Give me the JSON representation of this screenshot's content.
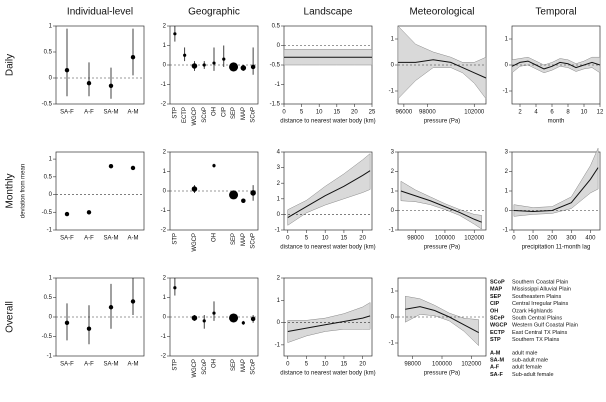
{
  "columns": [
    "Individual-level",
    "Geographic",
    "Landscape",
    "Meteorological",
    "Temporal"
  ],
  "rows": [
    "Daily",
    "Monthly",
    "Overall"
  ],
  "ylabel": "deviation from mean",
  "chart_data": [
    {
      "type": "errorbar",
      "categories": [
        "SA-F",
        "A-F",
        "SA-M",
        "A-M"
      ],
      "values": [
        0.15,
        -0.1,
        -0.15,
        0.4
      ],
      "lower": [
        -0.35,
        -0.35,
        -0.4,
        0.05
      ],
      "upper": [
        0.95,
        0.3,
        0.2,
        0.95
      ],
      "ylim": [
        -0.5,
        1
      ],
      "yticks": [
        -0.5,
        0,
        0.5,
        1
      ]
    },
    {
      "type": "bubble",
      "categories": [
        "STP",
        "ECTP",
        "WGCP",
        "SCoP",
        "OH",
        "CIP",
        "SEP",
        "MAP",
        "SCoP"
      ],
      "values": [
        1.6,
        0.5,
        -0.05,
        0,
        0.1,
        0.3,
        -0.1,
        -0.15,
        -0.1
      ],
      "lower": [
        1.2,
        0.2,
        -0.3,
        -0.2,
        -0.3,
        -0.1,
        -0.3,
        -0.3,
        -0.5
      ],
      "upper": [
        2,
        0.9,
        0.2,
        0.2,
        0.9,
        1,
        0.1,
        0,
        0.9
      ],
      "sizes": [
        1,
        1,
        3,
        1,
        1,
        1,
        8,
        3,
        2
      ],
      "ylim": [
        -2,
        2
      ],
      "yticks": [
        -2,
        -1,
        0,
        1,
        2
      ]
    },
    {
      "type": "band",
      "xlabel": "distance to nearest water body (km)",
      "x": [
        0,
        5,
        10,
        15,
        20,
        25
      ],
      "values": [
        -0.3,
        -0.3,
        -0.3,
        -0.3,
        -0.3,
        -0.3
      ],
      "lower": [
        -0.5,
        -0.5,
        -0.5,
        -0.5,
        -0.5,
        -0.5
      ],
      "upper": [
        -0.1,
        -0.1,
        -0.1,
        -0.1,
        -0.1,
        -0.1
      ],
      "xlim": [
        0,
        25
      ],
      "xticks": [
        0,
        5,
        10,
        15,
        20,
        25
      ],
      "ylim": [
        -1.5,
        0.5
      ],
      "yticks": [
        -1.5,
        -1,
        -0.5,
        0,
        0.5
      ]
    },
    {
      "type": "band",
      "xlabel": "pressure (Pa)",
      "x": [
        95500,
        97000,
        98500,
        100000,
        101000,
        102000,
        103000
      ],
      "values": [
        0.1,
        0.1,
        0.2,
        0.1,
        -0.1,
        -0.3,
        -0.5
      ],
      "lower": [
        -1.3,
        -0.6,
        -0.1,
        -0.1,
        -0.3,
        -0.7,
        -1.3
      ],
      "upper": [
        1.5,
        0.8,
        0.5,
        0.3,
        0.1,
        0.1,
        0.3
      ],
      "xlim": [
        95500,
        103000
      ],
      "xticks": [
        96000,
        98000,
        102000
      ],
      "ylim": [
        -1.5,
        1.5
      ],
      "yticks": [
        -1,
        0,
        1
      ]
    },
    {
      "type": "band",
      "xlabel": "month",
      "x": [
        1,
        2,
        3,
        4,
        5,
        6,
        7,
        8,
        9,
        10,
        11,
        12
      ],
      "values": [
        -0.05,
        0.1,
        0.15,
        0,
        -0.15,
        -0.05,
        0.1,
        0.05,
        -0.1,
        0,
        0.1,
        0
      ],
      "lower": [
        -0.3,
        -0.05,
        0,
        -0.15,
        -0.3,
        -0.2,
        -0.05,
        -0.1,
        -0.25,
        -0.15,
        -0.1,
        -0.3
      ],
      "upper": [
        0.2,
        0.25,
        0.3,
        0.15,
        0,
        0.1,
        0.25,
        0.2,
        0.05,
        0.15,
        0.3,
        0.3
      ],
      "xlim": [
        1,
        12
      ],
      "xticks": [
        2,
        4,
        6,
        8,
        10,
        12
      ],
      "ylim": [
        -1.5,
        1.5
      ],
      "yticks": [
        -1,
        0,
        1
      ]
    },
    {
      "type": "errorbar",
      "categories": [
        "SA-F",
        "A-F",
        "SA-M",
        "A-M"
      ],
      "values": [
        -0.55,
        -0.5,
        0.8,
        0.75
      ],
      "lower": [
        -0.6,
        -0.55,
        0.75,
        0.7
      ],
      "upper": [
        -0.5,
        -0.45,
        0.85,
        0.8
      ],
      "ylim": [
        -1,
        1.2
      ],
      "yticks": [
        -1,
        -0.5,
        0,
        0.5,
        1
      ]
    },
    {
      "type": "bubble",
      "categories": [
        "STP",
        null,
        "WGCP",
        null,
        "OH",
        null,
        "SEP",
        "MAP",
        "SCoP"
      ],
      "values": [
        null,
        null,
        0.1,
        null,
        1.3,
        null,
        -0.2,
        -0.5,
        -0.1
      ],
      "lower": [
        null,
        null,
        -0.1,
        null,
        1.2,
        null,
        -0.3,
        -0.6,
        -0.5
      ],
      "upper": [
        null,
        null,
        0.3,
        null,
        1.4,
        null,
        -0.1,
        -0.4,
        0.3
      ],
      "sizes": [
        null,
        null,
        3,
        null,
        1,
        null,
        8,
        2,
        3
      ],
      "ylim": [
        -2,
        2
      ],
      "yticks": [
        -2,
        -1,
        0,
        1,
        2
      ]
    },
    {
      "type": "band",
      "xlabel": "distance to nearest water body (km)",
      "x": [
        0,
        5,
        10,
        15,
        20,
        22
      ],
      "values": [
        -0.2,
        0.5,
        1.2,
        1.8,
        2.5,
        2.8
      ],
      "lower": [
        -0.7,
        0.1,
        0.6,
        1.0,
        1.4,
        1.6
      ],
      "upper": [
        0.3,
        0.9,
        1.8,
        2.6,
        3.5,
        3.9
      ],
      "xlim": [
        -1,
        22.5
      ],
      "xticks": [
        0,
        5,
        10,
        15,
        20
      ],
      "ylim": [
        -1,
        4
      ],
      "yticks": [
        -1,
        0,
        1,
        2,
        3,
        4
      ]
    },
    {
      "type": "band",
      "xlabel": "pressure (Pa)",
      "x": [
        97000,
        98000,
        99000,
        100000,
        101000,
        102000,
        102500
      ],
      "values": [
        1.0,
        0.75,
        0.5,
        0.2,
        -0.1,
        -0.45,
        -0.6
      ],
      "lower": [
        0.5,
        0.45,
        0.3,
        0.05,
        -0.25,
        -0.7,
        -0.95
      ],
      "upper": [
        1.5,
        1.05,
        0.7,
        0.35,
        0.05,
        -0.2,
        -0.25
      ],
      "xlim": [
        96800,
        102800
      ],
      "xticks": [
        98000,
        100000,
        102000
      ],
      "ylim": [
        -1,
        3
      ],
      "yticks": [
        -1,
        0,
        1,
        2,
        3
      ]
    },
    {
      "type": "band",
      "xlabel": "precipitation 11-month lag",
      "x": [
        0,
        100,
        200,
        300,
        400,
        440
      ],
      "values": [
        0,
        -0.05,
        0,
        0.4,
        1.6,
        2.2
      ],
      "lower": [
        -0.3,
        -0.2,
        -0.15,
        0.1,
        0.9,
        1.1
      ],
      "upper": [
        0.3,
        0.15,
        0.2,
        0.7,
        2.3,
        3.2
      ],
      "xlim": [
        -10,
        450
      ],
      "xticks": [
        0,
        100,
        200,
        300,
        400
      ],
      "ylim": [
        -1,
        3
      ],
      "yticks": [
        -1,
        0,
        1,
        2,
        3
      ]
    },
    {
      "type": "errorbar",
      "categories": [
        "SA-F",
        "A-F",
        "SA-M",
        "A-M"
      ],
      "values": [
        -0.15,
        -0.3,
        0.25,
        0.4
      ],
      "lower": [
        -0.6,
        -0.7,
        -0.3,
        0.05
      ],
      "upper": [
        0.35,
        0.3,
        0.85,
        1.0
      ],
      "ylim": [
        -1,
        1
      ],
      "yticks": [
        -1,
        -0.5,
        0,
        0.5,
        1
      ]
    },
    {
      "type": "bubble",
      "categories": [
        "STP",
        null,
        "WGCP",
        "SCoP",
        "OH",
        null,
        "SEP",
        "MAP",
        "SCoP"
      ],
      "values": [
        1.5,
        null,
        -0.05,
        -0.2,
        0.2,
        null,
        -0.05,
        -0.3,
        -0.1
      ],
      "lower": [
        1.1,
        null,
        -0.2,
        -0.6,
        -0.2,
        null,
        -0.2,
        -0.4,
        -0.3
      ],
      "upper": [
        2,
        null,
        0.1,
        0.1,
        0.8,
        null,
        0.1,
        -0.2,
        0.1
      ],
      "sizes": [
        1,
        null,
        3,
        1,
        1,
        null,
        8,
        1,
        2
      ],
      "ylim": [
        -2,
        2
      ],
      "yticks": [
        -2,
        -1,
        0,
        1,
        2
      ]
    },
    {
      "type": "band",
      "xlabel": "distance to nearest water body (km)",
      "x": [
        0,
        5,
        10,
        15,
        20,
        22
      ],
      "values": [
        -0.4,
        -0.25,
        -0.1,
        0.05,
        0.2,
        0.3
      ],
      "lower": [
        -0.9,
        -0.6,
        -0.4,
        -0.3,
        -0.3,
        -0.3
      ],
      "upper": [
        0.1,
        0.1,
        0.2,
        0.4,
        0.7,
        0.9
      ],
      "xlim": [
        -1,
        22.5
      ],
      "xticks": [
        0,
        5,
        10,
        15,
        20
      ],
      "ylim": [
        -1.5,
        2
      ],
      "yticks": [
        -1,
        0,
        1,
        2
      ]
    },
    {
      "type": "band",
      "xlabel": "pressure (Pa)",
      "x": [
        97500,
        98500,
        99500,
        100500,
        101500,
        102500
      ],
      "values": [
        0.3,
        0.4,
        0.25,
        0,
        -0.3,
        -0.6
      ],
      "lower": [
        -0.2,
        0.1,
        0.05,
        -0.15,
        -0.55,
        -1.1
      ],
      "upper": [
        0.8,
        0.7,
        0.45,
        0.15,
        -0.05,
        -0.1
      ],
      "xlim": [
        97000,
        103000
      ],
      "xticks": [
        98000,
        100000,
        102000
      ],
      "ylim": [
        -1.5,
        1.5
      ],
      "yticks": [
        -1,
        0,
        1
      ]
    }
  ],
  "legend": {
    "regions": [
      {
        "abbr": "SCoP",
        "name": "Southern Coastal Plain"
      },
      {
        "abbr": "MAP",
        "name": "Mississippi Alluvial Plain"
      },
      {
        "abbr": "SEP",
        "name": "Southeastern Plains"
      },
      {
        "abbr": "CIP",
        "name": "Central Irregular Plains"
      },
      {
        "abbr": "OH",
        "name": "Ozark Highlands"
      },
      {
        "abbr": "SCeP",
        "name": "South Central Plains"
      },
      {
        "abbr": "WGCP",
        "name": "Western Gulf Coastal Plain"
      },
      {
        "abbr": "ECTP",
        "name": "East Central TX Plains"
      },
      {
        "abbr": "STP",
        "name": "Southern TX Plains"
      }
    ],
    "classes": [
      {
        "abbr": "A-M",
        "name": "adult male"
      },
      {
        "abbr": "SA-M",
        "name": "sub-adult male"
      },
      {
        "abbr": "A-F",
        "name": "adult female"
      },
      {
        "abbr": "SA-F",
        "name": "Sub-adult female"
      }
    ]
  }
}
